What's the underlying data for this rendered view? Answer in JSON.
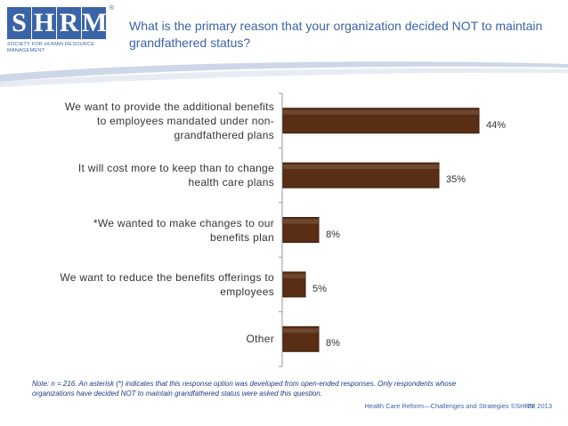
{
  "logo": {
    "letters": [
      "S",
      "H",
      "R",
      "M"
    ],
    "reg": "®",
    "tagline": "Society for Human Resource Management"
  },
  "slide": {
    "title": "What is the primary reason that your organization decided NOT to maintain grandfathered status?",
    "note": "Note: n = 216. An asterisk (*) indicates that this response option was developed from open-ended responses. Only respondents whose organizations have decided NOT to maintain grandfathered status were asked this question.",
    "footer": "Health Care Reform—Challenges and Strategies ©SHRM 2013",
    "page_number": "21"
  },
  "colors": {
    "bar": "#5a2e14",
    "bar_edge": "#3e1e0b",
    "accent": "#3a64a8",
    "swoosh": "#c8d3e6"
  },
  "chart_data": {
    "type": "bar",
    "orientation": "horizontal",
    "title": "What is the primary reason that your organization decided NOT to maintain grandfathered status?",
    "categories": [
      "We want to provide the additional benefits to employees mandated under non-grandfathered plans",
      "It will cost more to keep than to change health care plans",
      "*We wanted to make changes to our benefits plan",
      "We want to reduce the benefits offerings to employees",
      "Other"
    ],
    "category_lines": [
      [
        "We want to provide the additional benefits",
        "to employees mandated under non-",
        "grandfathered plans"
      ],
      [
        "It will cost more to keep than to change",
        "health care plans"
      ],
      [
        "*We wanted to make changes to our",
        "benefits plan"
      ],
      [
        "We want to reduce the benefits offerings to",
        "employees"
      ],
      [
        "Other"
      ]
    ],
    "values": [
      44,
      35,
      8,
      5,
      8
    ],
    "value_labels": [
      "44%",
      "35%",
      "8%",
      "5%",
      "8%"
    ],
    "xlim": [
      0,
      50
    ],
    "xlabel": "",
    "ylabel": "",
    "grid": false
  }
}
